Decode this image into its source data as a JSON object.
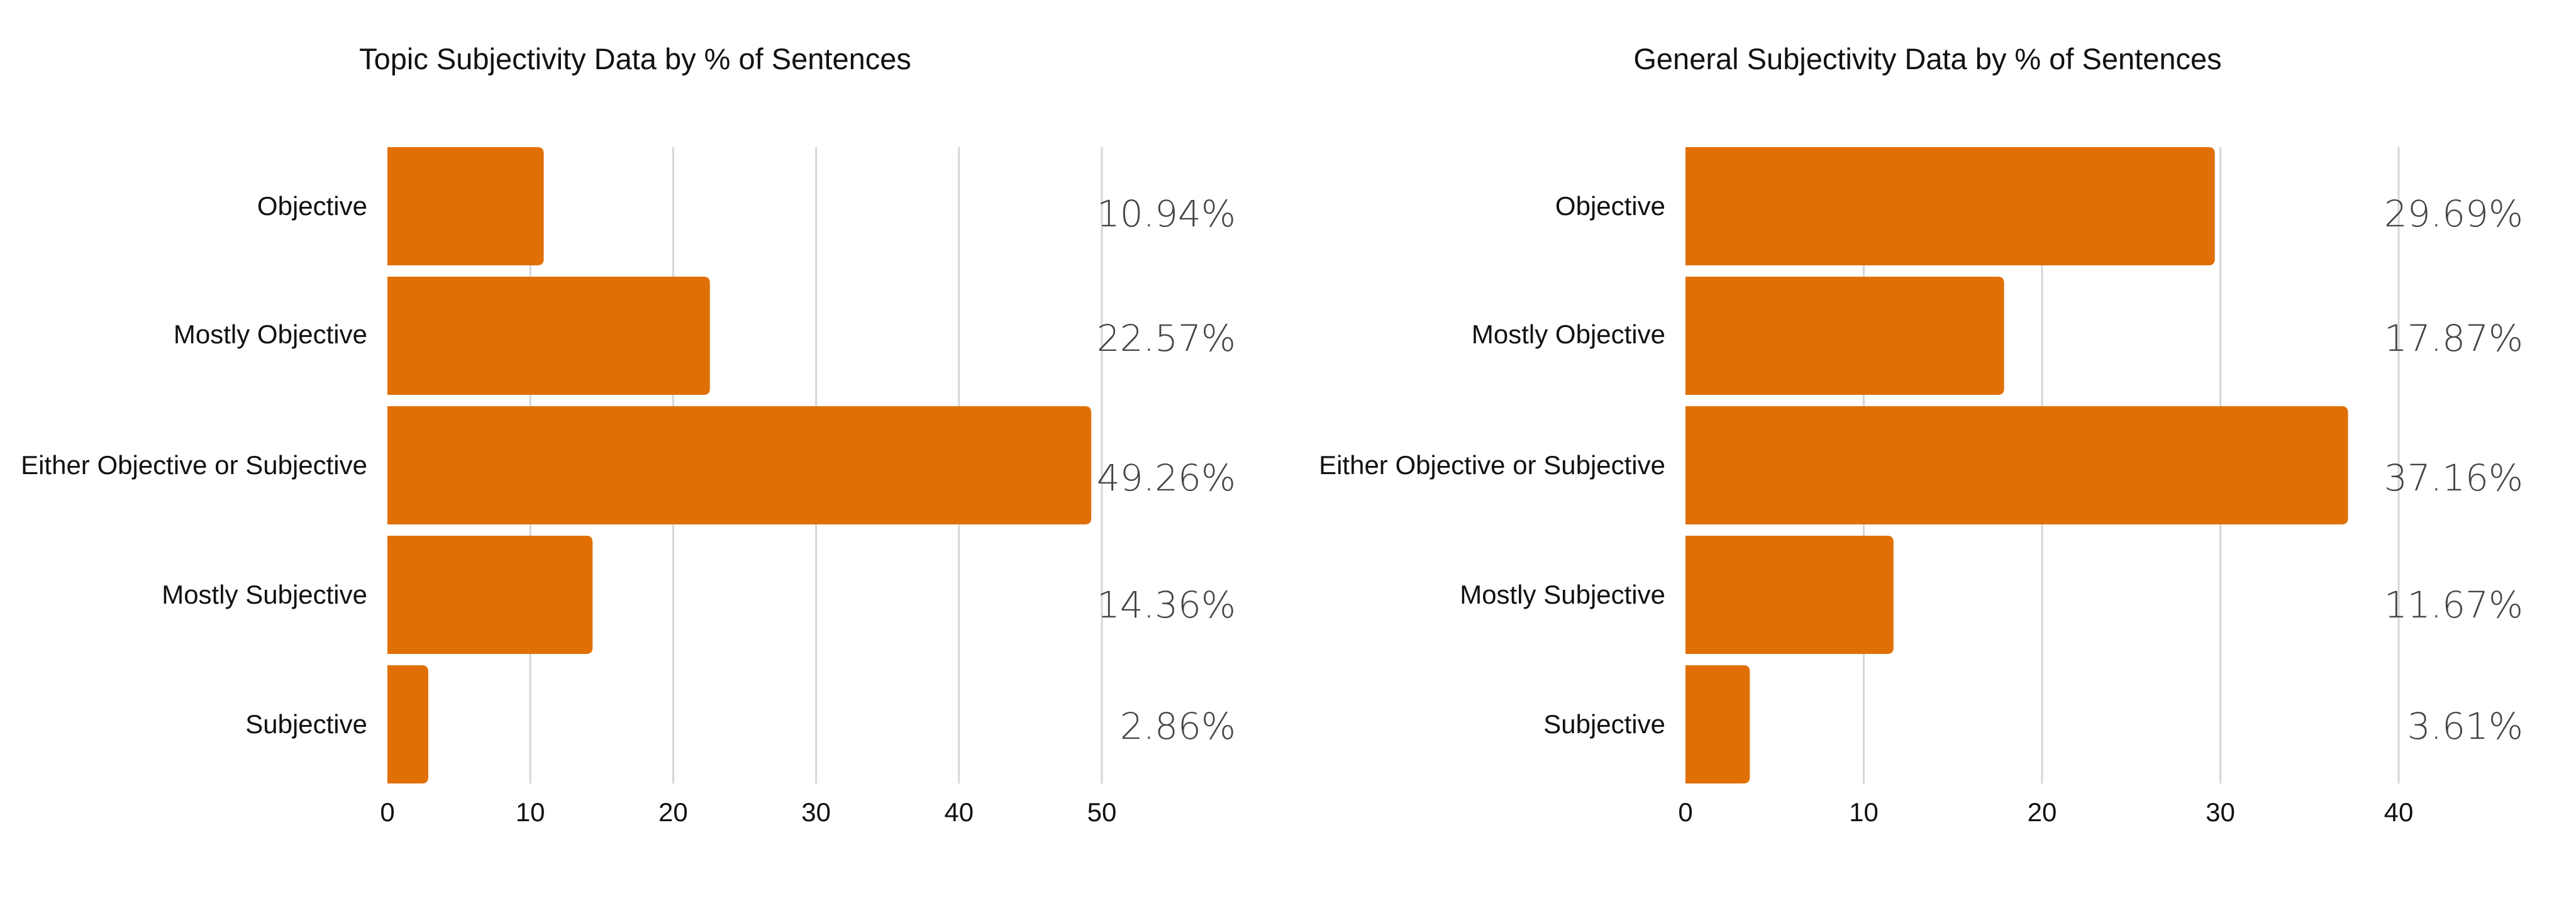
{
  "colors": {
    "bar": "#E07005",
    "grid": "#d6d6d6",
    "text": "#111111",
    "value_text": "#444444"
  },
  "chart_data": [
    {
      "type": "bar",
      "orientation": "horizontal",
      "title": "Topic Subjectivity Data by % of Sentences",
      "categories": [
        "Objective",
        "Mostly Objective",
        "Either Objective or Subjective",
        "Mostly Subjective",
        "Subjective"
      ],
      "values": [
        10.94,
        22.57,
        49.26,
        14.36,
        2.86
      ],
      "value_labels": [
        "10.94%",
        "22.57%",
        "49.26%",
        "14.36%",
        "2.86%"
      ],
      "xlim": [
        0,
        50
      ],
      "xticks": [
        0,
        10,
        20,
        30,
        40,
        50
      ],
      "xlabel": "",
      "ylabel": "",
      "grid": "vertical"
    },
    {
      "type": "bar",
      "orientation": "horizontal",
      "title": "General Subjectivity Data by % of Sentences",
      "categories": [
        "Objective",
        "Mostly Objective",
        "Either Objective or Subjective",
        "Mostly Subjective",
        "Subjective"
      ],
      "values": [
        29.69,
        17.87,
        37.16,
        11.67,
        3.61
      ],
      "value_labels": [
        "29.69%",
        "17.87%",
        "37.16%",
        "11.67%",
        "3.61%"
      ],
      "xlim": [
        0,
        40
      ],
      "xticks": [
        0,
        10,
        20,
        30,
        40
      ],
      "xlabel": "",
      "ylabel": "",
      "grid": "vertical"
    }
  ]
}
